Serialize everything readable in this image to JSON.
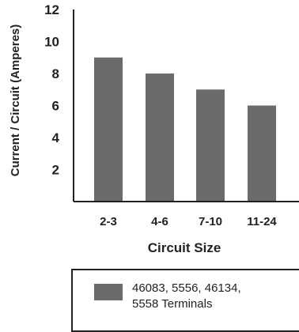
{
  "chart_data": {
    "type": "bar",
    "categories": [
      "2-3",
      "4-6",
      "7-10",
      "11-24"
    ],
    "values": [
      9,
      8,
      7,
      6
    ],
    "xlabel": "Circuit Size",
    "ylabel": "Current / Circuit (Amperes)",
    "yticks": [
      2,
      4,
      6,
      8,
      10,
      12
    ],
    "ylim": [
      0,
      12
    ],
    "grid": false,
    "legend_position": "bottom",
    "bar_color": "#6b6b6b",
    "series": [
      {
        "name": "46083, 5556, 46134, 5558 Terminals",
        "values": [
          9,
          8,
          7,
          6
        ]
      }
    ]
  },
  "legend": {
    "line1": "46083, 5556, 46134,",
    "line2": "5558 Terminals"
  }
}
